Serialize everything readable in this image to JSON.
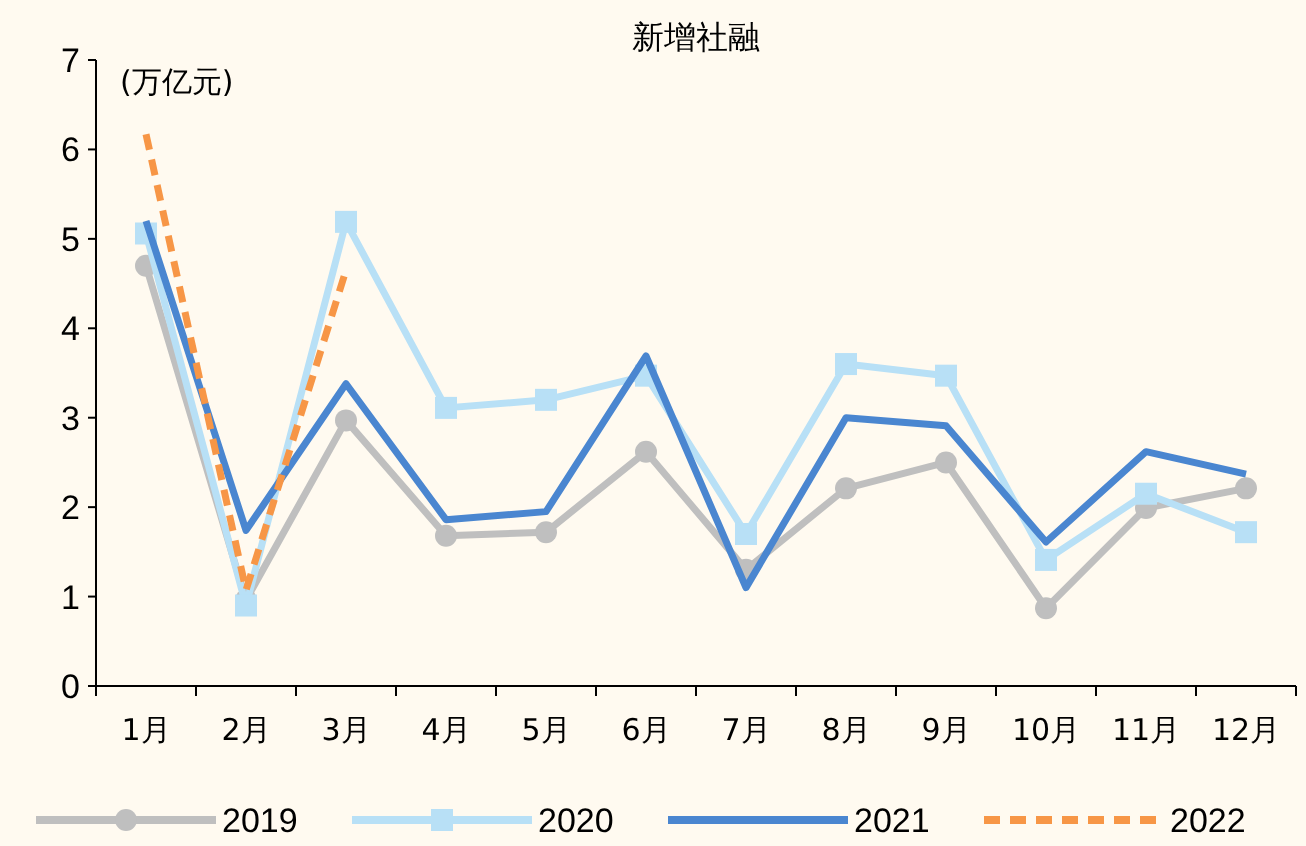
{
  "chart_data": {
    "type": "line",
    "title": "新增社融",
    "ylabel": "(万亿元)",
    "categories": [
      "1月",
      "2月",
      "3月",
      "4月",
      "5月",
      "6月",
      "7月",
      "8月",
      "9月",
      "10月",
      "11月",
      "12月"
    ],
    "ylim": [
      0,
      7
    ],
    "yticks": [
      0,
      1,
      2,
      3,
      4,
      5,
      6,
      7
    ],
    "grid": false,
    "legend": "bottom",
    "series": [
      {
        "name": "2019",
        "color": "#bfbfbf",
        "marker": "circle",
        "line_style": "solid",
        "values": [
          4.7,
          0.96,
          2.97,
          1.68,
          1.72,
          2.62,
          1.3,
          2.21,
          2.5,
          0.87,
          1.99,
          2.21
        ]
      },
      {
        "name": "2020",
        "color": "#b8e0f6",
        "marker": "square",
        "line_style": "solid",
        "values": [
          5.06,
          0.9,
          5.19,
          3.11,
          3.2,
          3.47,
          1.7,
          3.6,
          3.47,
          1.41,
          2.15,
          1.72
        ]
      },
      {
        "name": "2021",
        "color": "#4a86d0",
        "marker": "none",
        "line_style": "solid",
        "values": [
          5.2,
          1.74,
          3.38,
          1.86,
          1.95,
          3.69,
          1.1,
          3.0,
          2.91,
          1.61,
          2.62,
          2.37
        ]
      },
      {
        "name": "2022",
        "color": "#f79646",
        "marker": "none",
        "line_style": "dashed",
        "values": [
          6.17,
          1.07,
          4.65,
          null,
          null,
          null,
          null,
          null,
          null,
          null,
          null,
          null
        ]
      }
    ]
  }
}
